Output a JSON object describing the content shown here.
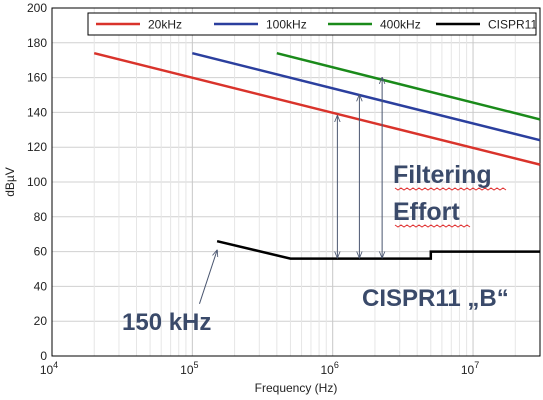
{
  "chart_data": {
    "type": "line",
    "title": "",
    "xlabel": "Frequency (Hz)",
    "ylabel": "dBµV",
    "x_scale": "log",
    "xlim": [
      10000,
      30000000
    ],
    "ylim": [
      0,
      200
    ],
    "ytick_labels": [
      "0",
      "20",
      "40",
      "60",
      "80",
      "100",
      "120",
      "140",
      "160",
      "180",
      "200"
    ],
    "xtick_labels": [
      {
        "base": "10",
        "exp": "4"
      },
      {
        "base": "10",
        "exp": "5"
      },
      {
        "base": "10",
        "exp": "6"
      },
      {
        "base": "10",
        "exp": "7"
      }
    ],
    "grid": true,
    "legend_position": "top-right",
    "series": [
      {
        "name": "20kHz",
        "color": "#d9332b",
        "x": [
          20000,
          30000000
        ],
        "y": [
          174,
          110
        ]
      },
      {
        "name": "100kHz",
        "color": "#2b3f9e",
        "x": [
          100000,
          30000000
        ],
        "y": [
          174,
          124
        ]
      },
      {
        "name": "400kHz",
        "color": "#1a8a1a",
        "x": [
          400000,
          30000000
        ],
        "y": [
          174,
          136
        ]
      },
      {
        "name": "CISPR11",
        "color": "#000000",
        "x": [
          150000,
          500000,
          5000000,
          5000000,
          30000000
        ],
        "y": [
          66,
          56,
          56,
          60,
          60
        ]
      }
    ],
    "annotations": {
      "filtering_line1": "Filtering",
      "filtering_line2": "Effort",
      "cispr_label": "CISPR11 „B“",
      "freq_label": "150 kHz"
    },
    "arrows": [
      {
        "x": 1080000,
        "y_from": 56,
        "y_to": 138
      },
      {
        "x": 1550000,
        "y_from": 56,
        "y_to": 150
      },
      {
        "x": 2250000,
        "y_from": 56,
        "y_to": 160
      }
    ],
    "pointer_arrow": {
      "from_x": 120000,
      "from_y": 30,
      "to_x": 150000,
      "to_y": 63
    }
  }
}
